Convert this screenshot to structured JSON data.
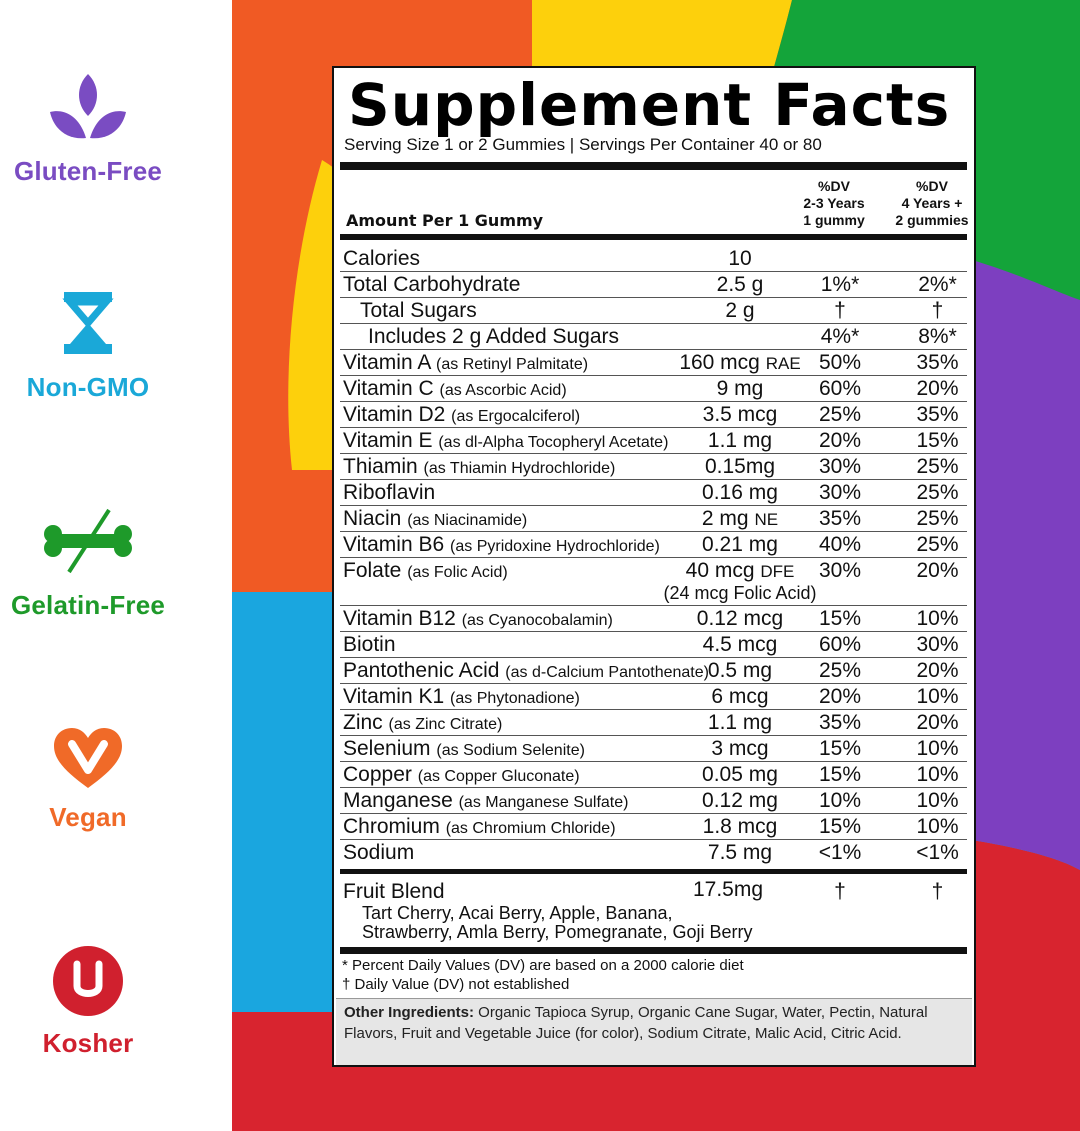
{
  "badges": [
    {
      "label": "Gluten-Free",
      "icon": "leaf-icon",
      "color": "#7a4cc2"
    },
    {
      "label": "Non-GMO",
      "icon": "dna-icon",
      "color": "#1aa8d8"
    },
    {
      "label": "Gelatin-Free",
      "icon": "crossed-bone-icon",
      "color": "#1e9a2a"
    },
    {
      "label": "Vegan",
      "icon": "heart-v-icon",
      "color": "#f06a28"
    },
    {
      "label": "Kosher",
      "icon": "u-circle-icon",
      "color": "#d0202e"
    }
  ],
  "background_colors": [
    "#f05a24",
    "#fdd00c",
    "#14a43a",
    "#7d3fc0",
    "#1aa6df",
    "#d8242f"
  ],
  "facts": {
    "title": "Supplement Facts",
    "serving": "Serving Size 1 or 2 Gummies | Servings Per Container 40 or 80",
    "amount_per": "Amount Per 1 Gummy",
    "col1_header": "%DV\n2-3 Years\n1 gummy",
    "col2_header": "%DV\n4 Years +\n2 gummies",
    "rows": [
      {
        "name": "Calories",
        "source": "",
        "amount": "10",
        "unit": "",
        "dv1": "",
        "dv2": ""
      },
      {
        "name": "Total Carbohydrate",
        "source": "",
        "amount": "2.5 g",
        "unit": "",
        "dv1": "1%*",
        "dv2": "2%*"
      },
      {
        "name": "Total Sugars",
        "source": "",
        "amount": "2 g",
        "unit": "",
        "dv1": "†",
        "dv2": "†"
      },
      {
        "name": "Includes 2 g Added Sugars",
        "source": "",
        "amount": "",
        "unit": "",
        "dv1": "4%*",
        "dv2": "8%*"
      },
      {
        "name": "Vitamin A",
        "source": "(as Retinyl Palmitate)",
        "amount": "160 mcg",
        "unit": "RAE",
        "dv1": "50%",
        "dv2": "35%"
      },
      {
        "name": "Vitamin C",
        "source": "(as Ascorbic Acid)",
        "amount": "9 mg",
        "unit": "",
        "dv1": "60%",
        "dv2": "20%"
      },
      {
        "name": "Vitamin D2",
        "source": "(as Ergocalciferol)",
        "amount": "3.5 mcg",
        "unit": "",
        "dv1": "25%",
        "dv2": "35%"
      },
      {
        "name": "Vitamin E",
        "source": "(as dl-Alpha Tocopheryl Acetate)",
        "amount": "1.1 mg",
        "unit": "",
        "dv1": "20%",
        "dv2": "15%"
      },
      {
        "name": "Thiamin",
        "source": "(as Thiamin Hydrochloride)",
        "amount": "0.15mg",
        "unit": "",
        "dv1": "30%",
        "dv2": "25%"
      },
      {
        "name": "Riboflavin",
        "source": "",
        "amount": "0.16 mg",
        "unit": "",
        "dv1": "30%",
        "dv2": "25%"
      },
      {
        "name": "Niacin",
        "source": "(as Niacinamide)",
        "amount": "2 mg",
        "unit": "NE",
        "dv1": "35%",
        "dv2": "25%"
      },
      {
        "name": "Vitamin B6",
        "source": "(as Pyridoxine Hydrochloride)",
        "amount": "0.21 mg",
        "unit": "",
        "dv1": "40%",
        "dv2": "25%"
      },
      {
        "name": "Folate",
        "source": "(as Folic Acid)",
        "amount": "40 mcg",
        "unit": "DFE",
        "sub": "(24 mcg Folic Acid)",
        "dv1": "30%",
        "dv2": "20%"
      },
      {
        "name": "Vitamin B12",
        "source": "(as Cyanocobalamin)",
        "amount": "0.12 mcg",
        "unit": "",
        "dv1": "15%",
        "dv2": "10%"
      },
      {
        "name": "Biotin",
        "source": "",
        "amount": "4.5 mcg",
        "unit": "",
        "dv1": "60%",
        "dv2": "30%"
      },
      {
        "name": "Pantothenic Acid",
        "source": "(as d-Calcium Pantothenate)",
        "amount": "0.5 mg",
        "unit": "",
        "dv1": "25%",
        "dv2": "20%"
      },
      {
        "name": "Vitamin K1",
        "source": "(as Phytonadione)",
        "amount": "6 mcg",
        "unit": "",
        "dv1": "20%",
        "dv2": "10%"
      },
      {
        "name": "Zinc",
        "source": "(as Zinc Citrate)",
        "amount": "1.1 mg",
        "unit": "",
        "dv1": "35%",
        "dv2": "20%"
      },
      {
        "name": "Selenium",
        "source": "(as Sodium Selenite)",
        "amount": "3 mcg",
        "unit": "",
        "dv1": "15%",
        "dv2": "10%"
      },
      {
        "name": "Copper",
        "source": "(as Copper Gluconate)",
        "amount": "0.05 mg",
        "unit": "",
        "dv1": "15%",
        "dv2": "10%"
      },
      {
        "name": "Manganese",
        "source": "(as Manganese Sulfate)",
        "amount": "0.12 mg",
        "unit": "",
        "dv1": "10%",
        "dv2": "10%"
      },
      {
        "name": "Chromium",
        "source": "(as Chromium Chloride)",
        "amount": "1.8 mcg",
        "unit": "",
        "dv1": "15%",
        "dv2": "10%"
      },
      {
        "name": "Sodium",
        "source": "",
        "amount": "7.5 mg",
        "unit": "",
        "dv1": "<1%",
        "dv2": "<1%"
      }
    ],
    "fruit_blend": {
      "name": "Fruit Blend",
      "amount": "17.5mg",
      "dv1": "†",
      "dv2": "†",
      "ingredients": "Tart Cherry, Acai Berry, Apple, Banana,\nStrawberry, Amla Berry, Pomegranate, Goji Berry"
    },
    "footnote1": "* Percent Daily Values (DV) are based on a 2000 calorie diet",
    "footnote2": "† Daily Value (DV) not established",
    "other_label": "Other Ingredients:",
    "other_text": " Organic Tapioca Syrup, Organic Cane Sugar, Water, Pectin, Natural Flavors, Fruit and Vegetable Juice (for color), Sodium Citrate, Malic Acid, Citric Acid."
  }
}
